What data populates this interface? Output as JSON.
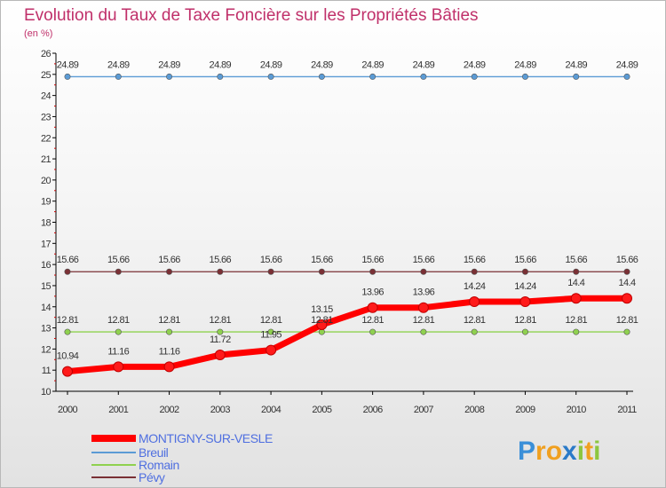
{
  "chart_data": {
    "type": "line",
    "title": "Evolution du Taux de Taxe Foncière sur les Propriétés Bâties",
    "subtitle": "(en %)",
    "xlabel": "",
    "ylabel": "",
    "x": [
      "2000",
      "2001",
      "2002",
      "2003",
      "2004",
      "2005",
      "2006",
      "2007",
      "2008",
      "2009",
      "2010",
      "2011"
    ],
    "ylim": [
      10,
      26
    ],
    "yticks": [
      "10",
      "11",
      "12",
      "13",
      "14",
      "15",
      "16",
      "17",
      "18",
      "19",
      "20",
      "21",
      "22",
      "23",
      "24",
      "25",
      "26"
    ],
    "grid": false,
    "legend_position": "bottom-left",
    "series": [
      {
        "name": "MONTIGNY-SUR-VESLE",
        "color": "#ff0000",
        "values": [
          10.94,
          11.16,
          11.16,
          11.72,
          11.95,
          13.15,
          13.96,
          13.96,
          14.24,
          14.24,
          14.4,
          14.4
        ],
        "labels": [
          "10.94",
          "11.16",
          "11.16",
          "11.72",
          "11.95",
          "13.15",
          "13.96",
          "13.96",
          "14.24",
          "14.24",
          "14.4",
          "14.4"
        ]
      },
      {
        "name": "Breuil",
        "color": "#5b9bd5",
        "values": [
          24.89,
          24.89,
          24.89,
          24.89,
          24.89,
          24.89,
          24.89,
          24.89,
          24.89,
          24.89,
          24.89,
          24.89
        ],
        "labels": [
          "24.89",
          "24.89",
          "24.89",
          "24.89",
          "24.89",
          "24.89",
          "24.89",
          "24.89",
          "24.89",
          "24.89",
          "24.89",
          "24.89"
        ]
      },
      {
        "name": "Romain",
        "color": "#8fd14f",
        "values": [
          12.81,
          12.81,
          12.81,
          12.81,
          12.81,
          12.81,
          12.81,
          12.81,
          12.81,
          12.81,
          12.81,
          12.81
        ],
        "labels": [
          "12.81",
          "12.81",
          "12.81",
          "12.81",
          "12.81",
          "12.81",
          "12.81",
          "12.81",
          "12.81",
          "12.81",
          "12.81",
          "12.81"
        ]
      },
      {
        "name": "Pévy",
        "color": "#7a3035",
        "values": [
          15.66,
          15.66,
          15.66,
          15.66,
          15.66,
          15.66,
          15.66,
          15.66,
          15.66,
          15.66,
          15.66,
          15.66
        ],
        "labels": [
          "15.66",
          "15.66",
          "15.66",
          "15.66",
          "15.66",
          "15.66",
          "15.66",
          "15.66",
          "15.66",
          "15.66",
          "15.66",
          "15.66"
        ]
      }
    ]
  },
  "logo": {
    "text": "Proxiti",
    "letters": [
      "P",
      "r",
      "o",
      "x",
      "i",
      "t",
      "i"
    ]
  },
  "colors": {
    "title": "#c0306a",
    "legend_text": "#4f6fe0",
    "axis": "#000000"
  }
}
